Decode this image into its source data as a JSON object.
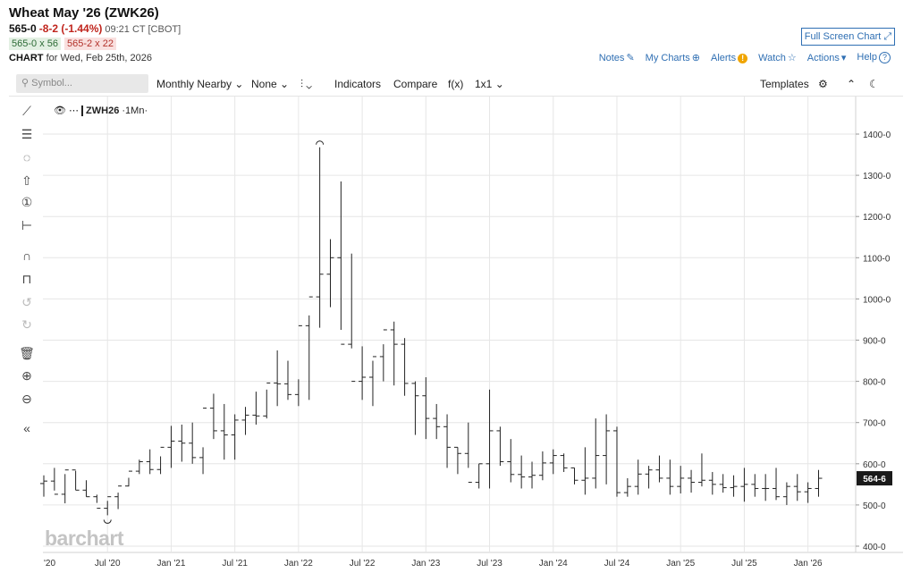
{
  "header": {
    "title": "Wheat May '26 (ZWK26)",
    "last": "565-0",
    "change": "-8-2 (-1.44%)",
    "time": "09:21 CT [CBOT]",
    "bid": "565-0 x 56",
    "ask": "565-2 x 22",
    "chart_label": "CHART",
    "chart_date": "for Wed, Feb 25th, 2026",
    "fullscreen": "Full Screen Chart",
    "links": [
      "Notes",
      "My Charts",
      "Alerts",
      "Watch",
      "Actions",
      "Help"
    ]
  },
  "toolbar": {
    "search_placeholder": "Symbol...",
    "period": "Monthly Nearby",
    "compare_mode": "None",
    "indicators": "Indicators",
    "compare": "Compare",
    "fx": "f(x)",
    "layout": "1x1",
    "templates": "Templates"
  },
  "legend": {
    "symbol": "ZWH26",
    "interval": "1Mn"
  },
  "logo": "barchart",
  "icons": [
    "line-tool-icon",
    "fib-tool-icon",
    "shape-tool-icon",
    "arrow-tool-icon",
    "counter-icon",
    "measure-icon",
    "magnet-icon",
    "lock-icon",
    "undo-icon",
    "redo-icon",
    "trash-icon",
    "zoom-in-icon",
    "zoom-out-icon",
    "collapse-icon"
  ],
  "chart_data": {
    "type": "ohlc",
    "x_tick_labels": [
      "'20",
      "Jul '20",
      "Jan '21",
      "Jul '21",
      "Jan '22",
      "Jul '22",
      "Jan '23",
      "Jul '23",
      "Jan '24",
      "Jul '24",
      "Jan '25",
      "Jul '25",
      "Jan '26"
    ],
    "y_tick_labels": [
      "400-0",
      "500-0",
      "600-0",
      "700-0",
      "800-0",
      "900-0",
      "1000-0",
      "1100-0",
      "1200-0",
      "1300-0",
      "1400-0"
    ],
    "ylim": [
      380,
      1460
    ],
    "last_price_label": "564-6",
    "last_price": 564.75,
    "high_marker": 1368,
    "low_marker": 475,
    "months": [
      "2020-01",
      "2020-02",
      "2020-03",
      "2020-04",
      "2020-05",
      "2020-06",
      "2020-07",
      "2020-08",
      "2020-09",
      "2020-10",
      "2020-11",
      "2020-12",
      "2021-01",
      "2021-02",
      "2021-03",
      "2021-04",
      "2021-05",
      "2021-06",
      "2021-07",
      "2021-08",
      "2021-09",
      "2021-10",
      "2021-11",
      "2021-12",
      "2022-01",
      "2022-02",
      "2022-03",
      "2022-04",
      "2022-05",
      "2022-06",
      "2022-07",
      "2022-08",
      "2022-09",
      "2022-10",
      "2022-11",
      "2022-12",
      "2023-01",
      "2023-02",
      "2023-03",
      "2023-04",
      "2023-05",
      "2023-06",
      "2023-07",
      "2023-08",
      "2023-09",
      "2023-10",
      "2023-11",
      "2023-12",
      "2024-01",
      "2024-02",
      "2024-03",
      "2024-04",
      "2024-05",
      "2024-06",
      "2024-07",
      "2024-08",
      "2024-09",
      "2024-10",
      "2024-11",
      "2024-12",
      "2025-01",
      "2025-02",
      "2025-03",
      "2025-04",
      "2025-05",
      "2025-06",
      "2025-07",
      "2025-08",
      "2025-09",
      "2025-10",
      "2025-11",
      "2025-12",
      "2026-01",
      "2026-02"
    ],
    "open": [
      552,
      558,
      526,
      585,
      536,
      520,
      492,
      520,
      546,
      582,
      605,
      586,
      640,
      655,
      650,
      615,
      735,
      680,
      670,
      706,
      718,
      716,
      796,
      794,
      768,
      935,
      1005,
      1060,
      1100,
      890,
      800,
      810,
      860,
      925,
      890,
      795,
      765,
      710,
      690,
      640,
      625,
      555,
      600,
      680,
      605,
      574,
      568,
      572,
      602,
      620,
      590,
      560,
      565,
      620,
      680,
      530,
      545,
      575,
      585,
      565,
      545,
      565,
      555,
      560,
      550,
      542,
      545,
      550,
      540,
      540,
      520,
      545,
      532,
      540
    ],
    "high": [
      572,
      590,
      575,
      583,
      560,
      525,
      510,
      530,
      566,
      610,
      635,
      618,
      692,
      695,
      700,
      640,
      770,
      745,
      720,
      738,
      775,
      780,
      875,
      850,
      805,
      960,
      1368,
      1145,
      1285,
      1110,
      885,
      850,
      890,
      945,
      905,
      800,
      810,
      745,
      720,
      640,
      700,
      600,
      780,
      690,
      660,
      620,
      605,
      630,
      635,
      625,
      590,
      640,
      710,
      720,
      690,
      565,
      610,
      595,
      620,
      610,
      595,
      585,
      625,
      580,
      575,
      572,
      590,
      575,
      575,
      590,
      555,
      575,
      555,
      585
    ],
    "low": [
      520,
      535,
      504,
      536,
      520,
      505,
      475,
      490,
      545,
      575,
      575,
      575,
      590,
      605,
      600,
      575,
      660,
      610,
      610,
      670,
      695,
      710,
      740,
      755,
      740,
      755,
      930,
      980,
      925,
      880,
      755,
      740,
      800,
      790,
      765,
      670,
      660,
      660,
      590,
      575,
      590,
      540,
      540,
      595,
      555,
      540,
      540,
      560,
      575,
      580,
      550,
      525,
      540,
      550,
      520,
      520,
      525,
      540,
      555,
      525,
      528,
      530,
      545,
      525,
      530,
      520,
      508,
      520,
      510,
      512,
      500,
      510,
      505,
      520
    ]
  }
}
